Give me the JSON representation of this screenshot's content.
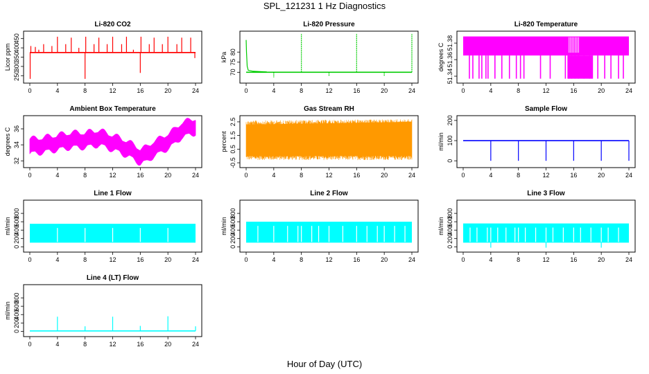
{
  "title": "SPL_121231  1 Hz Diagnostics",
  "xlabel": "Hour of Day (UTC)",
  "chart_data": [
    {
      "type": "line",
      "title": "Li-820 CO2",
      "ylabel": "Licor ppm",
      "color": "#ff0000",
      "x_ticks": [
        0,
        4,
        8,
        12,
        16,
        20,
        24
      ],
      "y_ticks": [
        250,
        300,
        350,
        400,
        450
      ],
      "xlim": [
        0,
        24
      ],
      "ylim": [
        225,
        475
      ],
      "band": [
        [
          0,
          372,
          378
        ],
        [
          24,
          372,
          378
        ]
      ],
      "baseline": 375,
      "spikes": [
        {
          "x": 0.05,
          "y": 233
        },
        {
          "x": 0.15,
          "y": 410
        },
        {
          "x": 0.8,
          "y": 405
        },
        {
          "x": 1.3,
          "y": 390
        },
        {
          "x": 2.0,
          "y": 420
        },
        {
          "x": 3.2,
          "y": 410
        },
        {
          "x": 4.0,
          "y": 460
        },
        {
          "x": 5.2,
          "y": 420
        },
        {
          "x": 6.0,
          "y": 455
        },
        {
          "x": 7.1,
          "y": 400
        },
        {
          "x": 8.0,
          "y": 233
        },
        {
          "x": 8.1,
          "y": 460
        },
        {
          "x": 9.3,
          "y": 420
        },
        {
          "x": 10.0,
          "y": 455
        },
        {
          "x": 11.2,
          "y": 420
        },
        {
          "x": 12.0,
          "y": 460
        },
        {
          "x": 13.3,
          "y": 420
        },
        {
          "x": 14.0,
          "y": 460
        },
        {
          "x": 15.0,
          "y": 390
        },
        {
          "x": 16.0,
          "y": 265
        },
        {
          "x": 16.1,
          "y": 460
        },
        {
          "x": 17.3,
          "y": 420
        },
        {
          "x": 18.0,
          "y": 455
        },
        {
          "x": 19.2,
          "y": 420
        },
        {
          "x": 20.0,
          "y": 460
        },
        {
          "x": 21.3,
          "y": 420
        },
        {
          "x": 22.0,
          "y": 455
        },
        {
          "x": 23.3,
          "y": 455
        },
        {
          "x": 23.9,
          "y": 345
        }
      ]
    },
    {
      "type": "line",
      "title": "Li-820 Pressure",
      "ylabel": "kPa",
      "color": "#00cc00",
      "x_ticks": [
        0,
        4,
        8,
        12,
        16,
        20,
        24
      ],
      "y_ticks": [
        70,
        75,
        80
      ],
      "xlim": [
        0,
        24
      ],
      "ylim": [
        66,
        89
      ],
      "start_curve": [
        [
          0,
          86
        ],
        [
          0.05,
          80
        ],
        [
          0.15,
          73
        ],
        [
          0.3,
          71
        ],
        [
          1.0,
          70.5
        ],
        [
          3.0,
          70.2
        ]
      ],
      "baseline": 70,
      "spikes": [
        {
          "x": 4.0,
          "y": 67.5
        },
        {
          "x": 8.0,
          "y": 89
        },
        {
          "x": 12.0,
          "y": 68
        },
        {
          "x": 16.0,
          "y": 89
        },
        {
          "x": 20.0,
          "y": 68
        },
        {
          "x": 24.0,
          "y": 89
        }
      ]
    },
    {
      "type": "line",
      "title": "Li-820 Temperature",
      "ylabel": "degrees C",
      "color": "#ff00ff",
      "x_ticks": [
        0,
        4,
        8,
        12,
        16,
        20,
        24
      ],
      "y_ticks": [
        51.34,
        51.36,
        51.38
      ],
      "xlim": [
        0,
        24
      ],
      "ylim": [
        51.335,
        51.391
      ],
      "band": [
        [
          0,
          51.365,
          51.388
        ],
        [
          24,
          51.365,
          51.388
        ]
      ],
      "dips": [
        0.9,
        1.4,
        2.3,
        2.7,
        3.3,
        3.6,
        4.6,
        5.6,
        6.7,
        7.7,
        8.3,
        8.8,
        11.2,
        12.6,
        14.8,
        15.3,
        15.7,
        16.2,
        16.7,
        17.5,
        18.3,
        19.5,
        20.5,
        21.4,
        22.5,
        23.2
      ],
      "dip_bottom": 51.337,
      "dense_low": [
        15.1,
        18.8
      ],
      "gap_top": [
        15.3,
        16.8
      ]
    },
    {
      "type": "line",
      "title": "Ambient Box Temperature",
      "ylabel": "degrees C",
      "color": "#ff00ff",
      "x_ticks": [
        0,
        4,
        8,
        12,
        16,
        20,
        24
      ],
      "y_ticks": [
        32,
        34,
        36
      ],
      "xlim": [
        0,
        24
      ],
      "ylim": [
        31.5,
        37.3
      ],
      "trend": [
        [
          0,
          33.8
        ],
        [
          2,
          34.0
        ],
        [
          4,
          34.3
        ],
        [
          6,
          34.6
        ],
        [
          8,
          34.6
        ],
        [
          10,
          34.9
        ],
        [
          11,
          34.6
        ],
        [
          12,
          34.3
        ],
        [
          14,
          33.6
        ],
        [
          16,
          32.6
        ],
        [
          17,
          32.8
        ],
        [
          18,
          33.6
        ],
        [
          19,
          33.9
        ],
        [
          20,
          34.5
        ],
        [
          21,
          35.0
        ],
        [
          22,
          35.9
        ],
        [
          23,
          36.1
        ],
        [
          24,
          36.4
        ]
      ],
      "half_width": 0.7
    },
    {
      "type": "line",
      "title": "Gas Stream RH",
      "ylabel": "percent",
      "color": "#ff9900",
      "x_ticks": [
        0,
        4,
        8,
        12,
        16,
        20,
        24
      ],
      "y_ticks": [
        -0.5,
        0.5,
        1.5,
        2.5
      ],
      "y_tick_labels": [
        "-0.5",
        "0.5",
        "1.5",
        "2.5"
      ],
      "xlim": [
        0,
        24
      ],
      "ylim": [
        -0.65,
        2.75
      ],
      "band": [
        [
          0,
          0.0,
          2.3
        ],
        [
          24,
          0.0,
          2.5
        ]
      ],
      "envelope": [
        [
          0,
          -0.3,
          2.6
        ],
        [
          24,
          -0.3,
          2.7
        ]
      ]
    },
    {
      "type": "line",
      "title": "Sample Flow",
      "ylabel": "ml/min",
      "color": "#0000ff",
      "x_ticks": [
        0,
        4,
        8,
        12,
        16,
        20,
        24
      ],
      "y_ticks": [
        0,
        100,
        200
      ],
      "xlim": [
        0,
        24
      ],
      "ylim": [
        -20,
        210
      ],
      "baseline": 100,
      "spikes": [
        {
          "x": 4.0,
          "y": 0
        },
        {
          "x": 8.0,
          "y": 0
        },
        {
          "x": 12.0,
          "y": 0
        },
        {
          "x": 16.0,
          "y": 0
        },
        {
          "x": 20.0,
          "y": 0
        },
        {
          "x": 24.0,
          "y": 0
        }
      ]
    },
    {
      "type": "line",
      "title": "Line 1 Flow",
      "ylabel": "ml/min",
      "color": "#00ffff",
      "x_ticks": [
        0,
        4,
        8,
        12,
        16,
        20,
        24
      ],
      "y_ticks": [
        0,
        200,
        400,
        600,
        800
      ],
      "xlim": [
        0,
        24
      ],
      "ylim": [
        -60,
        1050
      ],
      "band": [
        [
          0,
          100,
          550
        ],
        [
          24,
          100,
          550
        ]
      ],
      "gaps": [
        4.0,
        8.0,
        12.0,
        16.0,
        20.0
      ]
    },
    {
      "type": "line",
      "title": "Line 2 Flow",
      "ylabel": "ml/min",
      "color": "#00ffff",
      "x_ticks": [
        0,
        4,
        8,
        12,
        16,
        20,
        24
      ],
      "y_ticks": [
        0,
        200,
        400,
        600,
        800
      ],
      "xlim": [
        0,
        24
      ],
      "ylim": [
        -60,
        1050
      ],
      "band": [
        [
          0,
          100,
          600
        ],
        [
          24,
          100,
          600
        ]
      ],
      "gaps": [
        1.7,
        4.0,
        6.0,
        7.5,
        8.0,
        9.5,
        10.5,
        12.0,
        14.0,
        16.0,
        17.5,
        19.0,
        20.0,
        21.5,
        23.0
      ]
    },
    {
      "type": "line",
      "title": "Line 3 Flow",
      "ylabel": "ml/min",
      "color": "#00ffff",
      "x_ticks": [
        0,
        4,
        8,
        12,
        16,
        20,
        24
      ],
      "y_ticks": [
        0,
        200,
        400,
        600,
        800
      ],
      "xlim": [
        0,
        24
      ],
      "ylim": [
        -60,
        1050
      ],
      "band": [
        [
          0,
          100,
          560
        ],
        [
          24,
          100,
          560
        ]
      ],
      "gaps": [
        1.0,
        2.0,
        3.5,
        4.0,
        5.0,
        6.2,
        7.5,
        8.0,
        9.0,
        10.5,
        12.0,
        13.0,
        14.5,
        16.0,
        17.0,
        18.5,
        20.0,
        21.0,
        22.5
      ],
      "low_spikes": [
        4.0,
        12.0,
        20.0
      ]
    },
    {
      "type": "line",
      "title": "Line 4 (LT) Flow",
      "ylabel": "ml/min",
      "color": "#00ffff",
      "x_ticks": [
        0,
        4,
        8,
        12,
        16,
        20,
        24
      ],
      "y_ticks": [
        0,
        200,
        400,
        600,
        800
      ],
      "xlim": [
        0,
        24
      ],
      "ylim": [
        -60,
        1050
      ],
      "baseline": 10,
      "spikes": [
        {
          "x": 4.0,
          "y": 350
        },
        {
          "x": 8.0,
          "y": 120
        },
        {
          "x": 12.0,
          "y": 350
        },
        {
          "x": 16.0,
          "y": 130
        },
        {
          "x": 20.0,
          "y": 360
        },
        {
          "x": 24.0,
          "y": 120
        }
      ]
    }
  ]
}
